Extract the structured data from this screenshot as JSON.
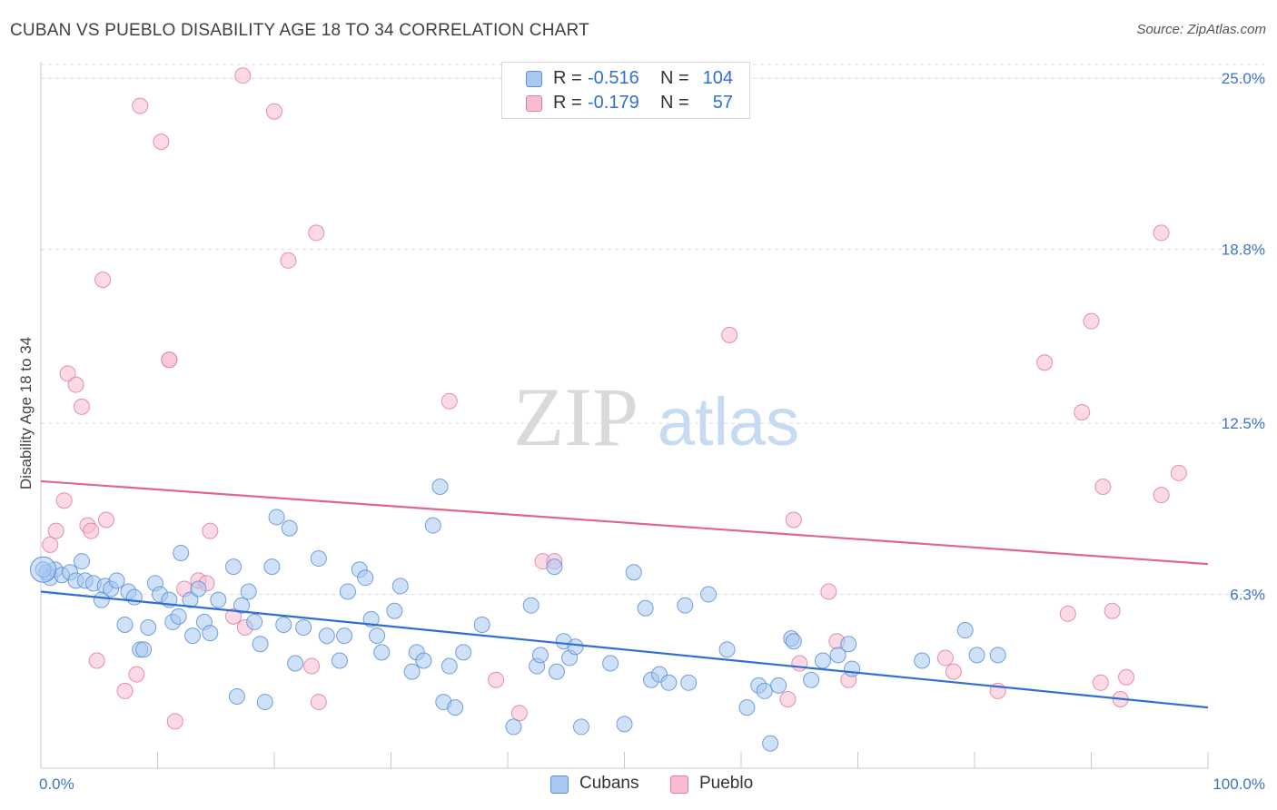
{
  "title": "CUBAN VS PUEBLO DISABILITY AGE 18 TO 34 CORRELATION CHART",
  "source": "Source: ZipAtlas.com",
  "watermark": {
    "zip": "ZIP",
    "atlas": "atlas"
  },
  "legend": {
    "rows": [
      {
        "r_label": "R =",
        "r_value": "-0.516",
        "n_label": "N =",
        "n_value": "104",
        "color": "#a8c8f0",
        "edge": "#5d8fd8"
      },
      {
        "r_label": "R =",
        "r_value": "-0.179",
        "n_label": "N =",
        "n_value": "57",
        "color": "#f8bcd0",
        "edge": "#e07ca0"
      }
    ]
  },
  "bottom_legend": [
    {
      "label": "Cubans",
      "color": "#a8c8f0",
      "edge": "#5d8fd8"
    },
    {
      "label": "Pueblo",
      "color": "#f8bcd0",
      "edge": "#e07ca0"
    }
  ],
  "chart_data": {
    "type": "scatter",
    "title": "CUBAN VS PUEBLO DISABILITY AGE 18 TO 34 CORRELATION CHART",
    "xlabel": "",
    "ylabel": "Disability Age 18 to 34",
    "xlim": [
      0,
      100
    ],
    "ylim": [
      0,
      25.6
    ],
    "x_tick_labels": [
      "0.0%",
      "100.0%"
    ],
    "y_ticks": [
      6.3,
      12.5,
      18.8,
      25.0
    ],
    "y_tick_labels": [
      "6.3%",
      "12.5%",
      "18.8%",
      "25.0%"
    ],
    "grid": true,
    "legend_position": "top-center",
    "series": [
      {
        "name": "Cubans",
        "color": "#5d8fd8",
        "fill": "#a8c8f0",
        "trend": {
          "x": [
            0,
            100
          ],
          "y": [
            6.4,
            2.2
          ]
        },
        "points": [
          [
            0.5,
            7.1
          ],
          [
            0.8,
            6.9
          ],
          [
            1.2,
            7.2
          ],
          [
            1.8,
            7.0
          ],
          [
            2.5,
            7.1
          ],
          [
            3.0,
            6.8
          ],
          [
            3.5,
            7.5
          ],
          [
            3.8,
            6.8
          ],
          [
            4.5,
            6.7
          ],
          [
            5.5,
            6.6
          ],
          [
            5.2,
            6.1
          ],
          [
            6.0,
            6.5
          ],
          [
            6.5,
            6.8
          ],
          [
            7.2,
            5.2
          ],
          [
            7.5,
            6.4
          ],
          [
            8.0,
            6.2
          ],
          [
            8.5,
            4.3
          ],
          [
            8.8,
            4.3
          ],
          [
            9.2,
            5.1
          ],
          [
            9.8,
            6.7
          ],
          [
            10.2,
            6.3
          ],
          [
            11.0,
            6.1
          ],
          [
            11.3,
            5.3
          ],
          [
            11.8,
            5.5
          ],
          [
            12.0,
            7.8
          ],
          [
            12.8,
            6.1
          ],
          [
            13.0,
            4.8
          ],
          [
            13.5,
            6.5
          ],
          [
            14.0,
            5.3
          ],
          [
            14.5,
            4.9
          ],
          [
            15.2,
            6.1
          ],
          [
            16.5,
            7.3
          ],
          [
            16.8,
            2.6
          ],
          [
            17.2,
            5.9
          ],
          [
            17.8,
            6.4
          ],
          [
            18.3,
            5.3
          ],
          [
            18.8,
            4.5
          ],
          [
            19.2,
            2.4
          ],
          [
            19.8,
            7.3
          ],
          [
            20.2,
            9.1
          ],
          [
            20.8,
            5.2
          ],
          [
            21.3,
            8.7
          ],
          [
            21.8,
            3.8
          ],
          [
            22.5,
            5.1
          ],
          [
            23.8,
            7.6
          ],
          [
            24.5,
            4.8
          ],
          [
            25.6,
            3.9
          ],
          [
            26.0,
            4.8
          ],
          [
            26.3,
            6.4
          ],
          [
            27.3,
            7.2
          ],
          [
            27.8,
            6.9
          ],
          [
            28.3,
            5.4
          ],
          [
            28.8,
            4.8
          ],
          [
            29.2,
            4.2
          ],
          [
            30.3,
            5.7
          ],
          [
            30.8,
            6.6
          ],
          [
            31.8,
            3.5
          ],
          [
            32.2,
            4.2
          ],
          [
            32.8,
            3.9
          ],
          [
            33.6,
            8.8
          ],
          [
            34.2,
            10.2
          ],
          [
            34.5,
            2.4
          ],
          [
            35.0,
            3.7
          ],
          [
            35.5,
            2.2
          ],
          [
            36.2,
            4.2
          ],
          [
            37.8,
            5.2
          ],
          [
            40.5,
            1.5
          ],
          [
            42.0,
            5.9
          ],
          [
            42.5,
            3.7
          ],
          [
            42.8,
            4.1
          ],
          [
            44.0,
            7.3
          ],
          [
            44.2,
            3.5
          ],
          [
            44.8,
            4.6
          ],
          [
            45.3,
            4.0
          ],
          [
            45.8,
            4.4
          ],
          [
            46.3,
            1.5
          ],
          [
            48.8,
            3.8
          ],
          [
            50.0,
            1.6
          ],
          [
            50.8,
            7.1
          ],
          [
            51.8,
            5.8
          ],
          [
            52.3,
            3.2
          ],
          [
            53.0,
            3.4
          ],
          [
            53.8,
            3.1
          ],
          [
            55.2,
            5.9
          ],
          [
            55.5,
            3.1
          ],
          [
            57.2,
            6.3
          ],
          [
            58.8,
            4.3
          ],
          [
            60.5,
            2.2
          ],
          [
            61.5,
            3.0
          ],
          [
            62.0,
            2.8
          ],
          [
            62.5,
            0.9
          ],
          [
            63.2,
            3.0
          ],
          [
            64.3,
            4.7
          ],
          [
            64.5,
            4.6
          ],
          [
            66.0,
            3.2
          ],
          [
            67.0,
            3.9
          ],
          [
            68.3,
            4.1
          ],
          [
            69.2,
            4.5
          ],
          [
            69.5,
            3.6
          ],
          [
            75.5,
            3.9
          ],
          [
            79.2,
            5.0
          ],
          [
            80.2,
            4.1
          ],
          [
            82.0,
            4.1
          ],
          [
            0.2,
            7.2
          ]
        ]
      },
      {
        "name": "Pueblo",
        "color": "#e07ca0",
        "fill": "#f8bcd0",
        "trend": {
          "x": [
            0,
            100
          ],
          "y": [
            10.4,
            7.4
          ]
        },
        "points": [
          [
            0.8,
            8.1
          ],
          [
            1.3,
            8.6
          ],
          [
            2.0,
            9.7
          ],
          [
            2.3,
            14.3
          ],
          [
            3.0,
            13.9
          ],
          [
            3.5,
            13.1
          ],
          [
            4.0,
            8.8
          ],
          [
            4.3,
            8.6
          ],
          [
            4.8,
            3.9
          ],
          [
            5.3,
            17.7
          ],
          [
            5.6,
            9.0
          ],
          [
            7.2,
            2.8
          ],
          [
            8.2,
            3.4
          ],
          [
            8.5,
            24.0
          ],
          [
            10.3,
            22.7
          ],
          [
            11.0,
            14.8
          ],
          [
            11.5,
            1.7
          ],
          [
            12.3,
            6.5
          ],
          [
            13.5,
            6.8
          ],
          [
            14.2,
            6.7
          ],
          [
            14.5,
            8.6
          ],
          [
            16.5,
            5.5
          ],
          [
            17.5,
            5.1
          ],
          [
            17.3,
            25.1
          ],
          [
            20.0,
            23.8
          ],
          [
            21.2,
            18.4
          ],
          [
            23.2,
            3.7
          ],
          [
            23.8,
            2.4
          ],
          [
            23.6,
            19.4
          ],
          [
            35.0,
            13.3
          ],
          [
            39.0,
            3.2
          ],
          [
            41.0,
            2.0
          ],
          [
            43.0,
            7.5
          ],
          [
            59.0,
            15.7
          ],
          [
            64.0,
            2.5
          ],
          [
            64.5,
            9.0
          ],
          [
            65.0,
            3.8
          ],
          [
            67.5,
            6.4
          ],
          [
            68.2,
            4.6
          ],
          [
            69.2,
            3.2
          ],
          [
            77.5,
            4.0
          ],
          [
            78.2,
            3.5
          ],
          [
            82.0,
            2.8
          ],
          [
            86.0,
            14.7
          ],
          [
            88.0,
            5.6
          ],
          [
            89.2,
            12.9
          ],
          [
            90.0,
            16.2
          ],
          [
            90.8,
            3.1
          ],
          [
            91.0,
            10.2
          ],
          [
            91.8,
            5.7
          ],
          [
            92.5,
            2.5
          ],
          [
            93.0,
            3.3
          ],
          [
            96.0,
            19.4
          ],
          [
            96.0,
            9.9
          ],
          [
            97.5,
            10.7
          ],
          [
            11.0,
            14.8
          ],
          [
            44.0,
            7.5
          ]
        ]
      }
    ]
  }
}
